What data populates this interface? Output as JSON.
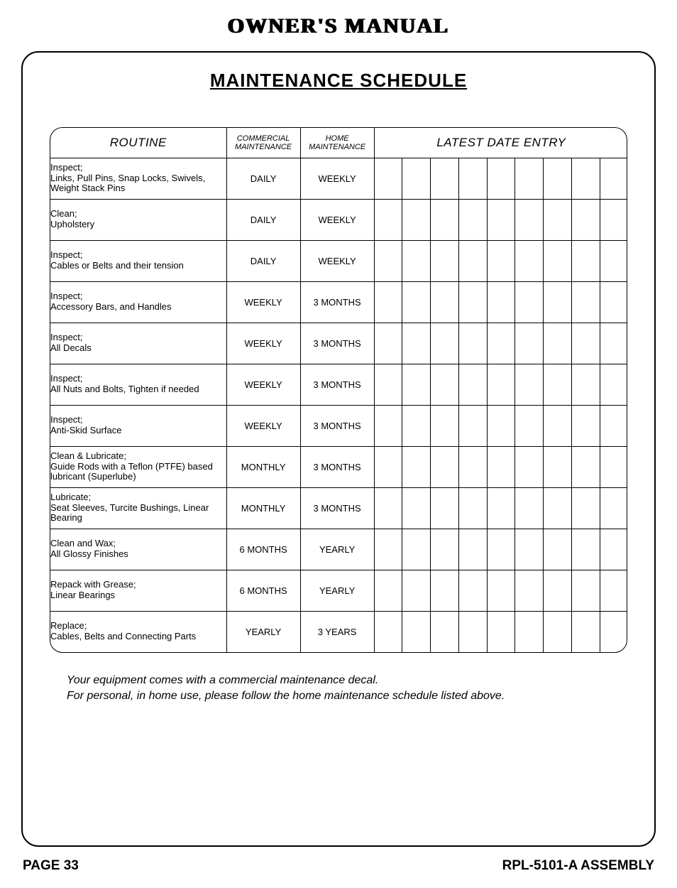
{
  "doc_title": "OWNER'S MANUAL",
  "section_title": "MAINTENANCE SCHEDULE",
  "table": {
    "headers": {
      "routine": "ROUTINE",
      "commercial": "COMMERCIAL MAINTENANCE",
      "home": "HOME MAINTENANCE",
      "latest": "LATEST DATE ENTRY"
    },
    "date_entry_cols": 9,
    "rows": [
      {
        "routine": "Inspect;\nLinks, Pull Pins, Snap Locks, Swivels, Weight Stack Pins",
        "commercial": "DAILY",
        "home": "WEEKLY"
      },
      {
        "routine": "Clean;\nUpholstery",
        "commercial": "DAILY",
        "home": "WEEKLY"
      },
      {
        "routine": "Inspect;\nCables or Belts and their tension",
        "commercial": "DAILY",
        "home": "WEEKLY"
      },
      {
        "routine": "Inspect;\nAccessory Bars, and Handles",
        "commercial": "WEEKLY",
        "home": "3 MONTHS"
      },
      {
        "routine": "Inspect;\nAll Decals",
        "commercial": "WEEKLY",
        "home": "3 MONTHS"
      },
      {
        "routine": "Inspect;\nAll Nuts and Bolts, Tighten if needed",
        "commercial": "WEEKLY",
        "home": "3 MONTHS"
      },
      {
        "routine": "Inspect;\nAnti-Skid Surface",
        "commercial": "WEEKLY",
        "home": "3 MONTHS"
      },
      {
        "routine": "Clean & Lubricate;\nGuide Rods with a Teflon (PTFE) based lubricant (Superlube)",
        "commercial": "MONTHLY",
        "home": "3 MONTHS"
      },
      {
        "routine": "Lubricate;\nSeat Sleeves, Turcite Bushings, Linear Bearing",
        "commercial": "MONTHLY",
        "home": "3 MONTHS"
      },
      {
        "routine": "Clean and Wax;\nAll Glossy Finishes",
        "commercial": "6 MONTHS",
        "home": "YEARLY"
      },
      {
        "routine": "Repack with Grease;\nLinear Bearings",
        "commercial": "6 MONTHS",
        "home": "YEARLY"
      },
      {
        "routine": "Replace;\nCables, Belts and Connecting Parts",
        "commercial": "YEARLY",
        "home": "3 YEARS"
      }
    ]
  },
  "footer_note_line1": "Your equipment comes with a commercial maintenance decal.",
  "footer_note_line2": "For personal, in home use, please follow the home maintenance schedule listed above.",
  "page_label": "PAGE 33",
  "assembly_label": "RPL-5101-A ASSEMBLY"
}
